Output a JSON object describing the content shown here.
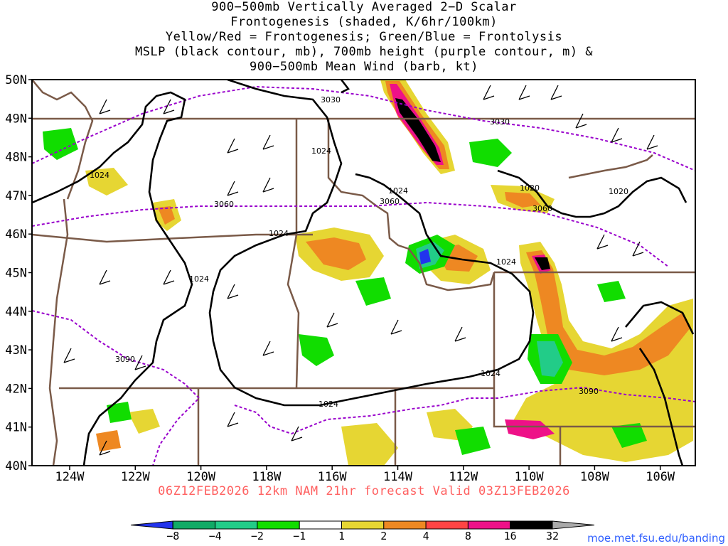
{
  "title": {
    "lines": [
      "900−500mb Vertically Averaged 2−D Scalar",
      "Frontogenesis (shaded, K/6hr/100km)",
      "Yellow/Red = Frontogenesis;  Green/Blue = Frontolysis",
      "MSLP (black contour, mb), 700mb height (purple contour, m) &",
      "900−500mb Mean Wind (barb, kt)"
    ]
  },
  "subtitle": "06Z12FEB2026 12km NAM 21hr forecast Valid 03Z13FEB2026",
  "credit": "moe.met.fsu.edu/banding",
  "map": {
    "lat_labels": [
      "50N",
      "49N",
      "48N",
      "47N",
      "46N",
      "45N",
      "44N",
      "43N",
      "42N",
      "41N",
      "40N"
    ],
    "lon_labels": [
      "124W",
      "122W",
      "120W",
      "118W",
      "116W",
      "114W",
      "112W",
      "110W",
      "108W",
      "106W"
    ],
    "mslp_labels": [
      "1024",
      "1024",
      "1024",
      "1024",
      "1024",
      "1024",
      "1024",
      "1024",
      "1020",
      "1020"
    ],
    "height_labels": [
      "3030",
      "3030",
      "3060",
      "3060",
      "3060",
      "3090",
      "3090"
    ]
  },
  "colorbar": {
    "labels": [
      "−8",
      "−4",
      "−2",
      "−1",
      "1",
      "2",
      "4",
      "8",
      "16",
      "32"
    ],
    "colors": [
      "#2233ee",
      "#11aa66",
      "#22cc88",
      "#11dd00",
      "#ffffff",
      "#e6d633",
      "#ee8822",
      "#ff4444",
      "#ee1188",
      "#000000",
      "#aaaaaa"
    ]
  },
  "colors": {
    "border": "#7a5a48",
    "mslp": "#000000",
    "height": "#9900cc",
    "subtitle": "#ff6060",
    "credit": "#3060ff"
  }
}
